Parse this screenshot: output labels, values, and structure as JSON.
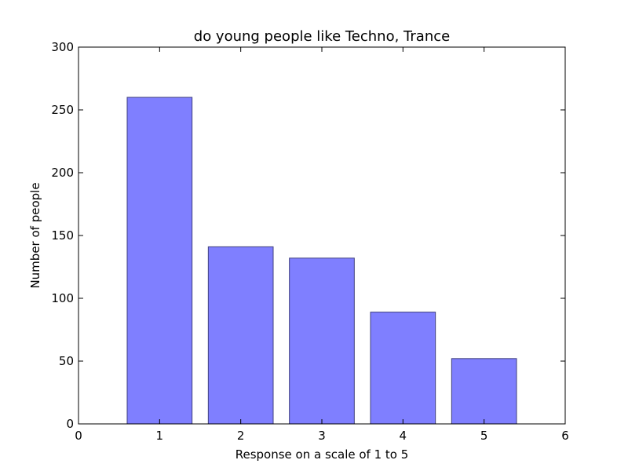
{
  "chart_data": {
    "type": "bar",
    "title": "do young people like Techno, Trance",
    "xlabel": "Response on a scale of 1 to 5",
    "ylabel": "Number of people",
    "categories": [
      1,
      2,
      3,
      4,
      5
    ],
    "values": [
      260,
      141,
      132,
      89,
      52
    ],
    "xlim": [
      0,
      6
    ],
    "ylim": [
      0,
      300
    ],
    "xticks": [
      0,
      1,
      2,
      3,
      4,
      5,
      6
    ],
    "yticks": [
      0,
      50,
      100,
      150,
      200,
      250,
      300
    ],
    "bar_width": 0.8,
    "bar_color": "#7f7fff",
    "bar_edge_color": "#3f3f7f",
    "grid": false,
    "legend": "none"
  }
}
